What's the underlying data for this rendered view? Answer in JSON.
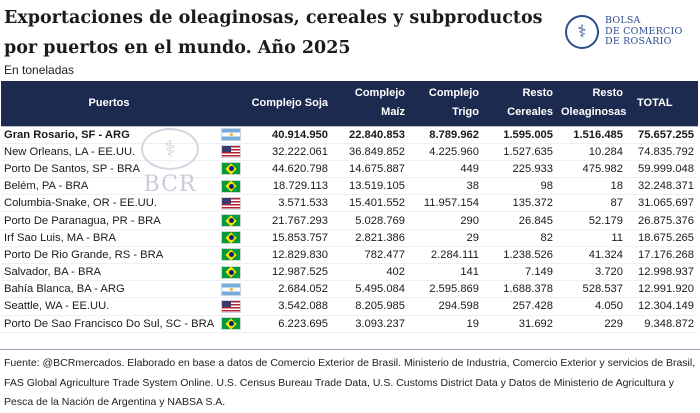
{
  "header": {
    "title": "Exportaciones de oleaginosas, cereales y subproductos por puertos en el mundo. Año 2025",
    "subtitle": "En toneladas",
    "logo_lines": [
      "BOLSA",
      "DE COMERCIO",
      "DE ROSARIO"
    ],
    "logo_icon": "caduceus-icon"
  },
  "watermark": {
    "text": "BCR",
    "icon": "caduceus-icon"
  },
  "table": {
    "columns": {
      "port": "Puertos",
      "soja": "Complejo Soja",
      "maiz": "Complejo Maíz",
      "trigo": "Complejo Trigo",
      "resto_cereales": "Resto Cereales",
      "resto_oleaginosas": "Resto Oleaginosas",
      "total": "TOTAL"
    },
    "rows": [
      {
        "port": "Gran Rosario, SF - ARG",
        "flag": "arg",
        "soja": "40.914.950",
        "maiz": "22.840.853",
        "trigo": "8.789.962",
        "resto_cereales": "1.595.005",
        "resto_oleaginosas": "1.516.485",
        "total": "75.657.255"
      },
      {
        "port": "New Orleans,  LA - EE.UU.",
        "flag": "usa",
        "soja": "32.222.061",
        "maiz": "36.849.852",
        "trigo": "4.225.960",
        "resto_cereales": "1.527.635",
        "resto_oleaginosas": "10.284",
        "total": "74.835.792"
      },
      {
        "port": "Porto De Santos, SP - BRA",
        "flag": "bra",
        "soja": "44.620.798",
        "maiz": "14.675.887",
        "trigo": "449",
        "resto_cereales": "225.933",
        "resto_oleaginosas": "475.982",
        "total": "59.999.048"
      },
      {
        "port": "Belém, PA - BRA",
        "flag": "bra",
        "soja": "18.729.113",
        "maiz": "13.519.105",
        "trigo": "38",
        "resto_cereales": "98",
        "resto_oleaginosas": "18",
        "total": "32.248.371"
      },
      {
        "port": "Columbia-Snake,  OR - EE.UU.",
        "flag": "usa",
        "soja": "3.571.533",
        "maiz": "15.401.552",
        "trigo": "11.957.154",
        "resto_cereales": "135.372",
        "resto_oleaginosas": "87",
        "total": "31.065.697"
      },
      {
        "port": "Porto De Paranagua, PR - BRA",
        "flag": "bra",
        "soja": "21.767.293",
        "maiz": "5.028.769",
        "trigo": "290",
        "resto_cereales": "26.845",
        "resto_oleaginosas": "52.179",
        "total": "26.875.376"
      },
      {
        "port": "Irf Sao Luis, MA - BRA",
        "flag": "bra",
        "soja": "15.853.757",
        "maiz": "2.821.386",
        "trigo": "29",
        "resto_cereales": "82",
        "resto_oleaginosas": "11",
        "total": "18.675.265"
      },
      {
        "port": "Porto De Rio Grande, RS - BRA",
        "flag": "bra",
        "soja": "12.829.830",
        "maiz": "782.477",
        "trigo": "2.284.111",
        "resto_cereales": "1.238.526",
        "resto_oleaginosas": "41.324",
        "total": "17.176.268"
      },
      {
        "port": "Salvador, BA - BRA",
        "flag": "bra",
        "soja": "12.987.525",
        "maiz": "402",
        "trigo": "141",
        "resto_cereales": "7.149",
        "resto_oleaginosas": "3.720",
        "total": "12.998.937"
      },
      {
        "port": "Bahía Blanca, BA - ARG",
        "flag": "arg",
        "soja": "2.684.052",
        "maiz": "5.495.084",
        "trigo": "2.595.869",
        "resto_cereales": "1.688.378",
        "resto_oleaginosas": "528.537",
        "total": "12.991.920"
      },
      {
        "port": "Seattle,  WA - EE.UU.",
        "flag": "usa",
        "soja": "3.542.088",
        "maiz": "8.205.985",
        "trigo": "294.598",
        "resto_cereales": "257.428",
        "resto_oleaginosas": "4.050",
        "total": "12.304.149"
      },
      {
        "port": "Porto De Sao Francisco Do Sul, SC - BRA",
        "flag": "bra",
        "soja": "6.223.695",
        "maiz": "3.093.237",
        "trigo": "19",
        "resto_cereales": "31.692",
        "resto_oleaginosas": "229",
        "total": "9.348.872"
      }
    ]
  },
  "footer": {
    "source": "Fuente: @BCRmercados. Elaborado en base a datos de Comercio Exterior de Brasil. Ministerio de Industria, Comercio Exterior y servicios de Brasil, FAS Global Agriculture Trade System Online. U.S. Census Bureau Trade Data, U.S. Customs District Data y Datos de Ministerio de Agricultura y Pesca de la Nación de Argentina y NABSA S.A."
  },
  "colors": {
    "header_bg": "#1d2a4f",
    "brand_blue": "#2b4d8e"
  }
}
